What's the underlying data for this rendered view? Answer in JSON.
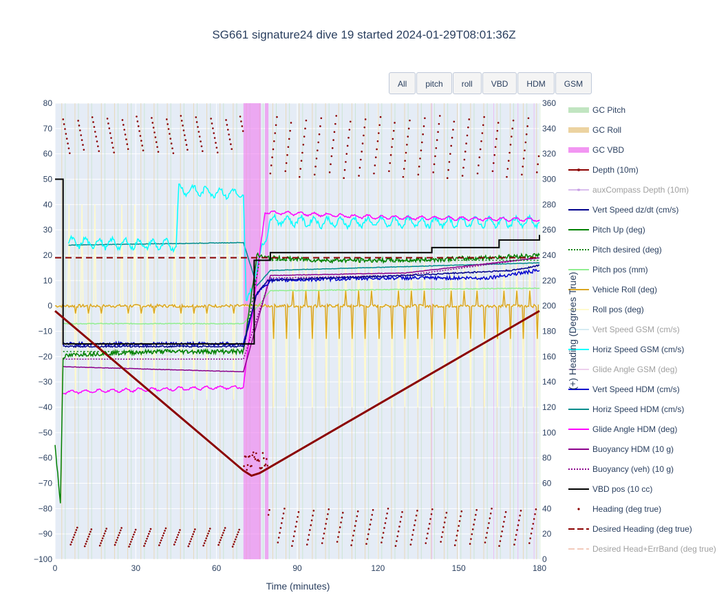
{
  "title": "SG661 signature24 dive 19 started 2024-01-29T08:01:36Z",
  "buttons": [
    "All",
    "pitch",
    "roll",
    "VBD",
    "HDM",
    "GSM"
  ],
  "chart_data": {
    "type": "line",
    "xlabel": "Time (minutes)",
    "ylabel": "",
    "y2label": "(+) Heading (Degrees True)",
    "xlim": [
      0,
      180
    ],
    "ylim": [
      -100,
      80
    ],
    "y2lim": [
      0,
      360
    ],
    "xticks": [
      0,
      30,
      60,
      90,
      120,
      150,
      180
    ],
    "yticks": [
      80,
      70,
      60,
      50,
      40,
      30,
      20,
      10,
      0,
      -10,
      -20,
      -30,
      -40,
      -50,
      -60,
      -70,
      -80,
      -90,
      -100
    ],
    "y2ticks": [
      360,
      340,
      320,
      300,
      280,
      260,
      240,
      220,
      200,
      180,
      160,
      140,
      120,
      100,
      80,
      60,
      40,
      20,
      0
    ],
    "grid": true,
    "legend_position": "right",
    "colors": {
      "plot_bg": "#e5ecf6",
      "grid": "#ffffff",
      "gc_pitch": "#b2dfb2",
      "gc_roll": "#e8c98a",
      "gc_vbd": "#f07cf0",
      "depth": "#8b0000",
      "aux_depth": "#b57edc",
      "vert_speed": "#00008b",
      "pitch_up": "#008000",
      "pitch_pos": "#90ee90",
      "vehicle_roll": "#daa520",
      "roll_pos": "#fffacd",
      "vert_speed_gsm": "#add8e6",
      "horiz_speed_gsm": "#00ffff",
      "glide_gsm": "#dda0dd",
      "vert_speed_hdm": "#0000cd",
      "horiz_speed_hdm": "#008b8b",
      "glide_hdm": "#ff00ff",
      "buoyancy": "#8b008b",
      "vbd_pos": "#000000",
      "desired_heading": "#8b0000",
      "errband": "#e9967a"
    },
    "series": [
      {
        "name": "GC Pitch",
        "style": "band",
        "color_key": "gc_pitch",
        "on": true
      },
      {
        "name": "GC Roll",
        "style": "band",
        "color_key": "gc_roll",
        "on": true
      },
      {
        "name": "GC VBD",
        "style": "band",
        "color_key": "gc_vbd",
        "on": true
      },
      {
        "name": "Depth (10m)",
        "style": "line-marker",
        "color_key": "depth",
        "on": true,
        "x": [
          0,
          70,
          73,
          76,
          180
        ],
        "y": [
          -2,
          -65,
          -67,
          -66,
          -2
        ]
      },
      {
        "name": "auxCompass Depth (10m)",
        "style": "line-marker",
        "color_key": "aux_depth",
        "on": false
      },
      {
        "name": "Vert Speed dz/dt (cm/s)",
        "style": "line",
        "color_key": "vert_speed",
        "on": true,
        "x": [
          3,
          70,
          75,
          79,
          100,
          130,
          150,
          170,
          180
        ],
        "y": [
          -16,
          -16,
          5,
          10,
          11,
          12,
          13,
          14,
          16
        ]
      },
      {
        "name": "Pitch Up (deg)",
        "style": "line",
        "color_key": "pitch_up",
        "on": true,
        "x": [
          0,
          2,
          3,
          10,
          40,
          70,
          75,
          78,
          100,
          130,
          160,
          180
        ],
        "y": [
          -55,
          -78,
          -20,
          -19,
          -18,
          -18,
          20,
          19,
          18,
          18,
          19,
          20
        ]
      },
      {
        "name": "Pitch desired (deg)",
        "style": "dot",
        "color_key": "pitch_up",
        "on": true,
        "x": [
          3,
          70,
          76,
          180
        ],
        "y": [
          -18,
          -18,
          18,
          18
        ]
      },
      {
        "name": "Pitch pos (mm)",
        "style": "line",
        "color_key": "pitch_pos",
        "on": true,
        "x": [
          3,
          70,
          80,
          180
        ],
        "y": [
          -7,
          -7,
          6,
          7
        ]
      },
      {
        "name": "Vehicle Roll (deg)",
        "style": "line",
        "color_key": "vehicle_roll",
        "on": true,
        "x": [
          0,
          70,
          76,
          180
        ],
        "y": [
          0,
          0,
          0,
          0
        ]
      },
      {
        "name": "Roll pos (deg)",
        "style": "line",
        "color_key": "roll_pos",
        "on": true,
        "x": [
          0,
          180
        ],
        "y": [
          0,
          0
        ]
      },
      {
        "name": "Vert Speed GSM (cm/s)",
        "style": "line",
        "color_key": "vert_speed_gsm",
        "on": false
      },
      {
        "name": "Horiz Speed GSM (cm/s)",
        "style": "line",
        "color_key": "horiz_speed_gsm",
        "on": true,
        "x": [
          5,
          45,
          46,
          70,
          71,
          80,
          100,
          140,
          180
        ],
        "y": [
          25,
          24,
          46,
          44,
          0,
          34,
          33,
          33,
          33
        ]
      },
      {
        "name": "Glide Angle GSM (deg)",
        "style": "line",
        "color_key": "glide_gsm",
        "on": false
      },
      {
        "name": "Vert Speed HDM (cm/s)",
        "style": "line",
        "color_key": "vert_speed_hdm",
        "on": true,
        "x": [
          3,
          70,
          75,
          80,
          120,
          160,
          180
        ],
        "y": [
          -15,
          -15,
          5,
          10,
          11,
          11,
          14
        ]
      },
      {
        "name": "Horiz Speed HDM (cm/s)",
        "style": "line",
        "color_key": "horiz_speed_hdm",
        "on": true,
        "x": [
          5,
          70,
          75,
          80,
          180
        ],
        "y": [
          24,
          25,
          8,
          14,
          17
        ]
      },
      {
        "name": "Glide Angle HDM (deg)",
        "style": "line",
        "color_key": "glide_hdm",
        "on": true,
        "x": [
          3,
          70,
          78,
          120,
          180
        ],
        "y": [
          -34,
          -32,
          37,
          35,
          34
        ]
      },
      {
        "name": "Buoyancy HDM (10 g)",
        "style": "line",
        "color_key": "buoyancy",
        "on": true,
        "x": [
          3,
          70,
          80,
          130,
          180
        ],
        "y": [
          -24,
          -26,
          12,
          13,
          19
        ]
      },
      {
        "name": "Buoyancy (veh) (10 g)",
        "style": "dot",
        "color_key": "buoyancy",
        "on": true,
        "x": [
          3,
          70,
          80,
          130,
          180
        ],
        "y": [
          -21,
          -21,
          11,
          12,
          19
        ]
      },
      {
        "name": "VBD pos (10 cc)",
        "style": "line",
        "color_key": "vbd_pos",
        "on": true,
        "x": [
          0,
          3,
          70,
          74,
          80,
          110,
          140,
          165,
          180
        ],
        "y": [
          50,
          -15,
          -15,
          18,
          21,
          21,
          23,
          26,
          28
        ]
      },
      {
        "name": "Heading (deg true)",
        "style": "marker",
        "color_key": "depth",
        "on": true
      },
      {
        "name": "Desired Heading (deg true)",
        "style": "dash",
        "color_key": "desired_heading",
        "on": true,
        "x": [
          0,
          180
        ],
        "y2": [
          238,
          238
        ]
      },
      {
        "name": "Desired Head+ErrBand (deg true)",
        "style": "dash",
        "color_key": "errband",
        "on": false
      }
    ]
  }
}
